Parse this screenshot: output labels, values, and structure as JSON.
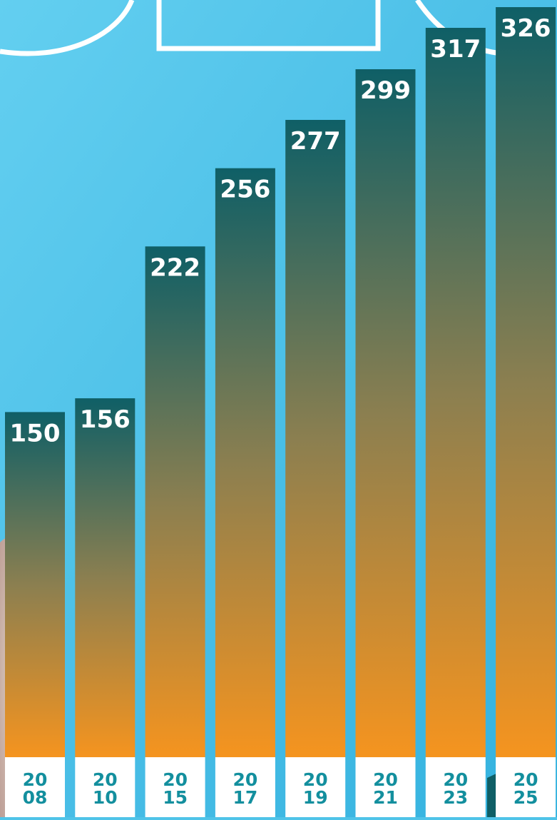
{
  "chart_data": {
    "type": "bar",
    "categories": [
      [
        "20",
        "08"
      ],
      [
        "20",
        "10"
      ],
      [
        "20",
        "15"
      ],
      [
        "20",
        "17"
      ],
      [
        "20",
        "19"
      ],
      [
        "20",
        "21"
      ],
      [
        "20",
        "23"
      ],
      [
        "20",
        "25"
      ]
    ],
    "values": [
      150,
      156,
      222,
      256,
      277,
      299,
      317,
      326
    ],
    "title": "",
    "xlabel": "",
    "ylabel": "",
    "ylim": [
      0,
      326
    ],
    "grid": false,
    "legend": "none"
  },
  "colors": {
    "background": "#4fc3e8",
    "bar_top": "#0f5f66",
    "bar_bottom": "#f5941f",
    "value_text": "#ffffff",
    "tick_text": "#138f9e",
    "tick_background": "#ffffff",
    "outline": "#ffffff"
  }
}
